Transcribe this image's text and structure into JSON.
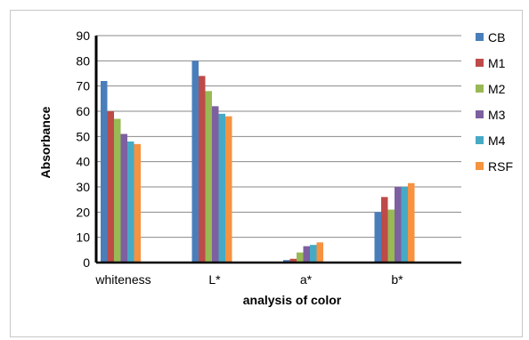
{
  "chart_data": {
    "type": "bar",
    "categories": [
      "whiteness",
      "L*",
      "a*",
      "b*"
    ],
    "series": [
      {
        "name": "CB",
        "color": "#4a7ebb",
        "values": [
          72,
          80,
          1,
          20
        ]
      },
      {
        "name": "M1",
        "color": "#be4b48",
        "values": [
          60,
          74,
          1.5,
          26
        ]
      },
      {
        "name": "M2",
        "color": "#98b954",
        "values": [
          57,
          68,
          4,
          21
        ]
      },
      {
        "name": "M3",
        "color": "#7d60a0",
        "values": [
          51,
          62,
          6.5,
          30
        ]
      },
      {
        "name": "M4",
        "color": "#46aac5",
        "values": [
          48,
          59,
          7,
          30
        ]
      },
      {
        "name": "RSF",
        "color": "#f69240",
        "values": [
          47,
          58,
          8,
          31.5
        ]
      }
    ],
    "title": "",
    "xlabel": "analysis of color",
    "ylabel": "Absorbance",
    "ylim": [
      0,
      90
    ],
    "yticks": [
      "0",
      "10",
      "20",
      "30",
      "40",
      "50",
      "60",
      "70",
      "80",
      "90"
    ],
    "grid": true,
    "legend": "right"
  }
}
